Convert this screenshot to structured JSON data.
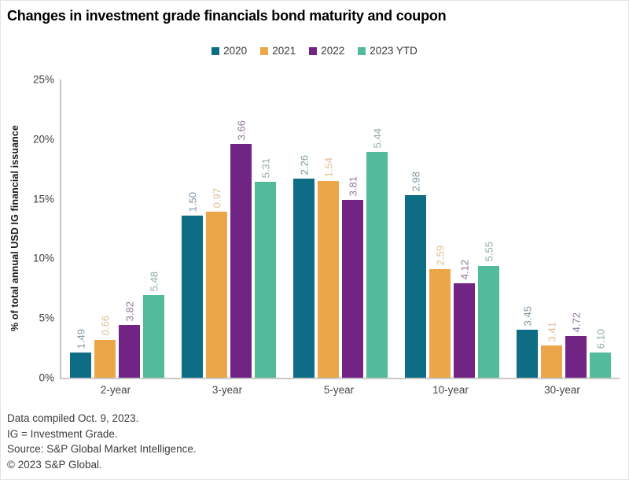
{
  "footnotes": [
    "Data compiled Oct. 9, 2023.",
    "IG = Investment Grade.",
    "Source: S&P Global Market Intelligence.",
    "© 2023 S&P Global."
  ],
  "chart_data": {
    "type": "bar",
    "title": "Changes in investment grade financials bond maturity and coupon",
    "xlabel": "",
    "ylabel": "% of total annual USD IG financial issuance",
    "ylim": [
      0,
      25
    ],
    "grid": false,
    "legend_position": "top-center",
    "yticks": [
      {
        "label": "25%",
        "value": 25
      },
      {
        "label": "20%",
        "value": 20
      },
      {
        "label": "15%",
        "value": 15
      },
      {
        "label": "10%",
        "value": 10
      },
      {
        "label": "5%",
        "value": 5
      },
      {
        "label": "0%",
        "value": 0
      }
    ],
    "categories": [
      "2-year",
      "3-year",
      "5-year",
      "10-year",
      "30-year"
    ],
    "series": [
      {
        "name": "2020",
        "color": "#0E6D84",
        "label_color": "#7E96A3",
        "values": [
          2.1,
          13.6,
          16.7,
          15.3,
          4.0
        ],
        "bar_labels": [
          "1.49",
          "1.50",
          "2.26",
          "2.98",
          "3.45"
        ]
      },
      {
        "name": "2021",
        "color": "#EBA64A",
        "label_color": "#DCBF96",
        "values": [
          3.2,
          13.9,
          16.5,
          9.1,
          2.7
        ],
        "bar_labels": [
          "0.66",
          "0.97",
          "1.54",
          "2.59",
          "3.41"
        ]
      },
      {
        "name": "2022",
        "color": "#712483",
        "label_color": "#92739C",
        "values": [
          4.4,
          19.6,
          14.9,
          7.9,
          3.5
        ],
        "bar_labels": [
          "3.82",
          "3.66",
          "3.81",
          "4.12",
          "4.72"
        ]
      },
      {
        "name": "2023 YTD",
        "color": "#52BB9C",
        "label_color": "#8FACA4",
        "values": [
          6.9,
          16.4,
          18.9,
          9.4,
          2.1
        ],
        "bar_labels": [
          "5.48",
          "5.31",
          "5.44",
          "5.55",
          "6.10"
        ]
      }
    ]
  }
}
